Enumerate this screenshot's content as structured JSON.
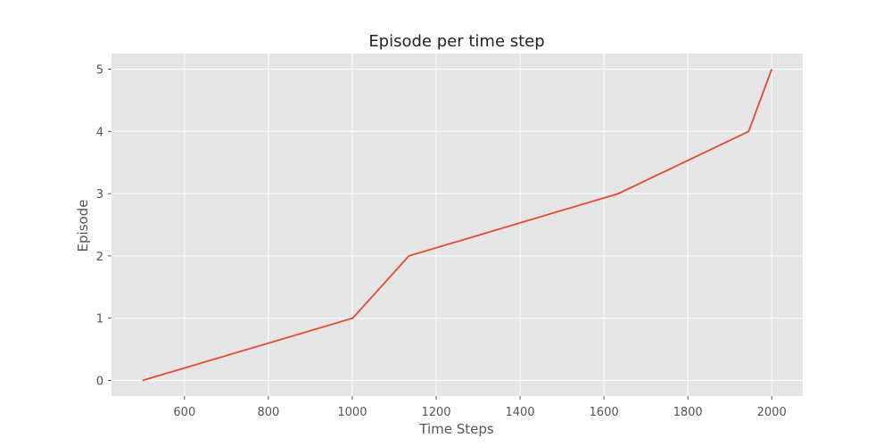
{
  "chart_data": {
    "type": "line",
    "title": "Episode per time step",
    "xlabel": "Time Steps",
    "ylabel": "Episode",
    "xlim": [
      426,
      2074
    ],
    "ylim": [
      -0.25,
      5.25
    ],
    "xticks": [
      600,
      800,
      1000,
      1200,
      1400,
      1600,
      1800,
      2000
    ],
    "yticks": [
      0,
      1,
      2,
      3,
      4,
      5
    ],
    "grid": true,
    "series": [
      {
        "color": "#E24A33",
        "x": [
          500,
          1001,
          1135,
          1634,
          1945,
          2000
        ],
        "y": [
          0,
          1,
          2,
          3,
          4,
          5
        ]
      }
    ]
  }
}
